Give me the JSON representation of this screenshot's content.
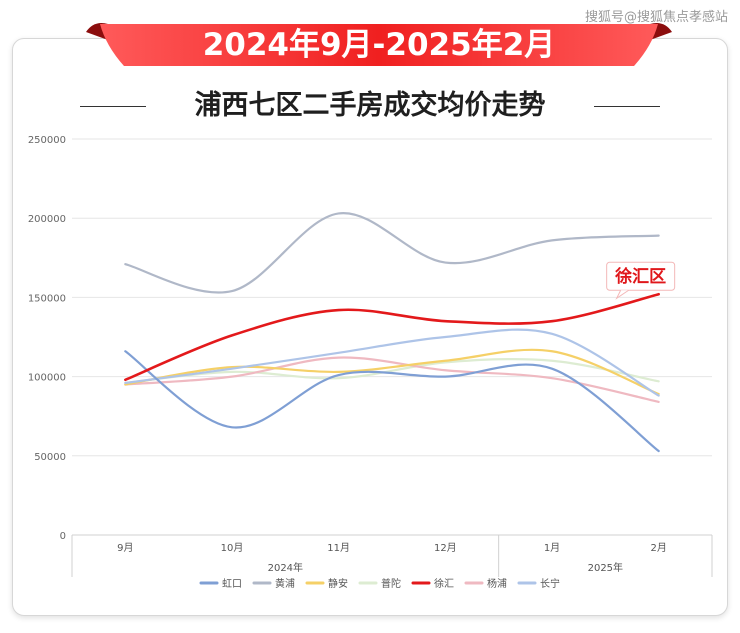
{
  "watermark": "搜狐号@搜狐焦点孝感站",
  "banner": "2024年9月-2025年2月",
  "title": "浦西七区二手房成交均价走势",
  "colors": {
    "banner": "#e51e1e",
    "banner_dark": "#8b0d0d",
    "highlight_label": "#e0171b"
  },
  "chart_data": {
    "type": "line",
    "categories": [
      "9月",
      "10月",
      "11月",
      "12月",
      "1月",
      "2月"
    ],
    "year_groups": [
      {
        "label": "2024年",
        "span": [
          0,
          3
        ]
      },
      {
        "label": "2025年",
        "span": [
          4,
          5
        ]
      }
    ],
    "ylim": [
      0,
      250000
    ],
    "yticks": [
      "0",
      "50000",
      "100000",
      "150000",
      "200000",
      "250000"
    ],
    "grid": true,
    "legend_position": "bottom",
    "highlight_label": "徐汇区",
    "series": [
      {
        "name": "虹口",
        "color": "#7f9fd4",
        "values": [
          116000,
          68000,
          101000,
          100000,
          105000,
          53000
        ]
      },
      {
        "name": "黄浦",
        "color": "#b0b8c8",
        "values": [
          171000,
          154000,
          203000,
          172000,
          186000,
          189000
        ]
      },
      {
        "name": "静安",
        "color": "#f5d067",
        "values": [
          95000,
          106000,
          103000,
          110000,
          116000,
          89000
        ]
      },
      {
        "name": "普陀",
        "color": "#ddecd2",
        "values": [
          96000,
          103000,
          99000,
          109000,
          110000,
          97000
        ]
      },
      {
        "name": "徐汇",
        "color": "#e3191b",
        "values": [
          98000,
          126000,
          142000,
          135000,
          135000,
          152000
        ]
      },
      {
        "name": "杨浦",
        "color": "#efb9c1",
        "values": [
          95000,
          100000,
          112000,
          104000,
          99000,
          84000
        ]
      },
      {
        "name": "长宁",
        "color": "#aec4e8",
        "values": [
          96000,
          105000,
          115000,
          125000,
          127000,
          88000
        ]
      }
    ]
  }
}
